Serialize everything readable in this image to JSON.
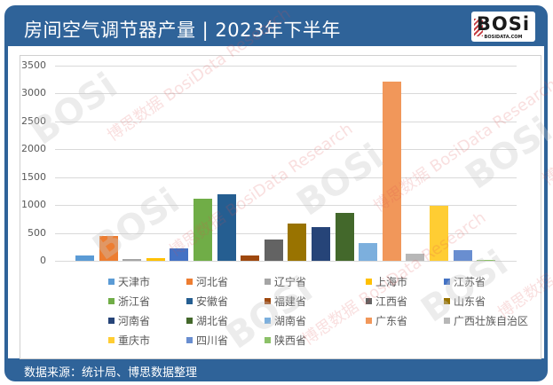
{
  "header": {
    "title": "房间空气调节器产量 | 2023年下半年",
    "logo_text": "BOSi",
    "logo_sub": "BOSIDATA.COM"
  },
  "footer": {
    "source": "数据来源：统计局、博思数据整理"
  },
  "watermark": {
    "brand": "BOSi",
    "cn": "博思数据",
    "en": "BosiData Research"
  },
  "colors": {
    "frame": "#2f6399",
    "grid": "#d9d9d9"
  },
  "chart_data": {
    "type": "bar",
    "title": "房间空气调节器产量 | 2023年下半年",
    "xlabel": "",
    "ylabel": "",
    "ylim": [
      0,
      3500
    ],
    "yticks": [
      0,
      500,
      1000,
      1500,
      2000,
      2500,
      3000,
      3500
    ],
    "grid": true,
    "legend_position": "bottom",
    "categories": [
      "天津市",
      "河北省",
      "辽宁省",
      "上海市",
      "江苏省",
      "浙江省",
      "安徽省",
      "福建省",
      "江西省",
      "山东省",
      "河南省",
      "湖北省",
      "湖南省",
      "广东省",
      "广西壮族自治区",
      "重庆市",
      "四川省",
      "陕西省"
    ],
    "series": [
      {
        "name": "天津市",
        "value": 95,
        "color": "#5B9BD5"
      },
      {
        "name": "河北省",
        "value": 450,
        "color": "#ED7D31"
      },
      {
        "name": "辽宁省",
        "value": 30,
        "color": "#A5A5A5"
      },
      {
        "name": "上海市",
        "value": 45,
        "color": "#FFC000"
      },
      {
        "name": "江苏省",
        "value": 225,
        "color": "#4472C4"
      },
      {
        "name": "浙江省",
        "value": 1110,
        "color": "#70AD47"
      },
      {
        "name": "安徽省",
        "value": 1200,
        "color": "#255E91"
      },
      {
        "name": "福建省",
        "value": 95,
        "color": "#9E480E"
      },
      {
        "name": "江西省",
        "value": 380,
        "color": "#636363"
      },
      {
        "name": "山东省",
        "value": 670,
        "color": "#997300"
      },
      {
        "name": "河南省",
        "value": 600,
        "color": "#264478"
      },
      {
        "name": "湖北省",
        "value": 855,
        "color": "#43682B"
      },
      {
        "name": "湖南省",
        "value": 315,
        "color": "#7CAFDD"
      },
      {
        "name": "广东省",
        "value": 3210,
        "color": "#F1975A"
      },
      {
        "name": "广西壮族自治区",
        "value": 125,
        "color": "#B7B7B7"
      },
      {
        "name": "重庆市",
        "value": 990,
        "color": "#FFCD33"
      },
      {
        "name": "四川省",
        "value": 195,
        "color": "#698ED0"
      },
      {
        "name": "陕西省",
        "value": 15,
        "color": "#8CC168"
      }
    ]
  }
}
